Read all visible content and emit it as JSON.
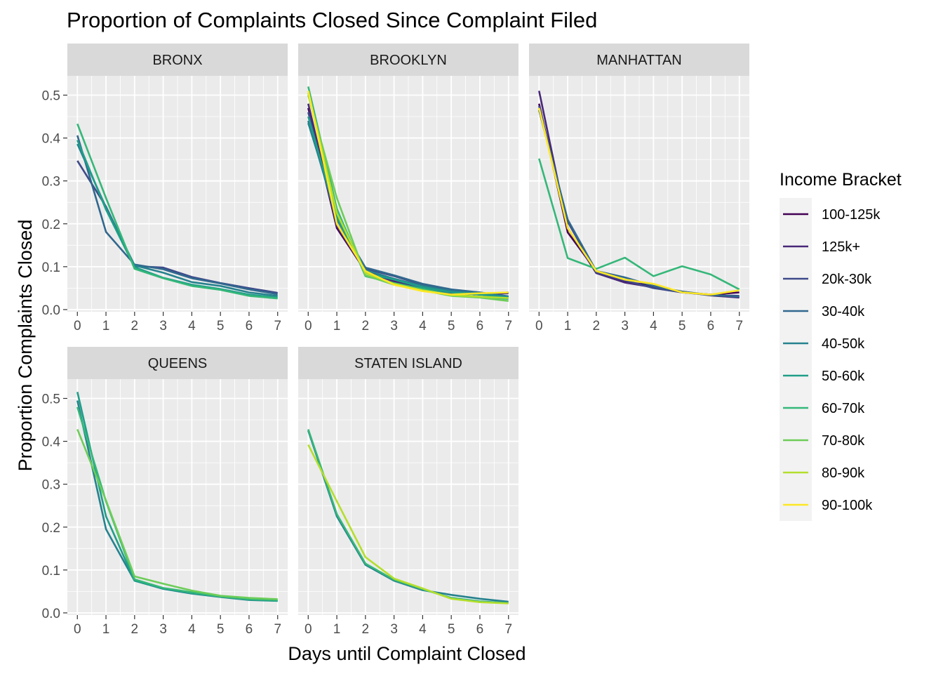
{
  "chart_data": {
    "type": "line",
    "title": "Proportion of Complaints Closed Since Complaint Filed",
    "xlabel": "Days until Complaint Closed",
    "ylabel": "Proportion Complaints Closed",
    "x": [
      0,
      1,
      2,
      3,
      4,
      5,
      6,
      7
    ],
    "x_ticks": [
      "0",
      "1",
      "2",
      "3",
      "4",
      "5",
      "6",
      "7"
    ],
    "y_ticks": [
      "0.0",
      "0.1",
      "0.2",
      "0.3",
      "0.4",
      "0.5"
    ],
    "xlim": [
      -0.35,
      7.35
    ],
    "ylim": [
      -0.005,
      0.545
    ],
    "grid": true,
    "legend": {
      "title": "Income Bracket",
      "position": "right",
      "entries": [
        {
          "name": "100-125k",
          "color": "#440154"
        },
        {
          "name": "125k+",
          "color": "#482878"
        },
        {
          "name": "20k-30k",
          "color": "#3E4A89"
        },
        {
          "name": "30-40k",
          "color": "#31688E"
        },
        {
          "name": "40-50k",
          "color": "#26828E"
        },
        {
          "name": "50-60k",
          "color": "#1F9E89"
        },
        {
          "name": "60-70k",
          "color": "#35B779"
        },
        {
          "name": "70-80k",
          "color": "#6DCD59"
        },
        {
          "name": "80-90k",
          "color": "#B4DE2C"
        },
        {
          "name": "90-100k",
          "color": "#FDE725"
        }
      ]
    },
    "panels": [
      {
        "name": "BRONX",
        "series": [
          {
            "name": "20k-30k",
            "color": "#3E4A89",
            "values": [
              0.347,
              0.24,
              0.101,
              0.098,
              0.076,
              0.062,
              0.05,
              0.039
            ]
          },
          {
            "name": "30-40k",
            "color": "#31688E",
            "values": [
              0.406,
              0.181,
              0.105,
              0.094,
              0.073,
              0.061,
              0.047,
              0.036
            ]
          },
          {
            "name": "40-50k",
            "color": "#26828E",
            "values": [
              0.386,
              0.238,
              0.103,
              0.086,
              0.064,
              0.055,
              0.04,
              0.032
            ]
          },
          {
            "name": "50-60k",
            "color": "#1F9E89",
            "values": [
              0.395,
              0.233,
              0.099,
              0.074,
              0.058,
              0.048,
              0.035,
              0.028
            ]
          },
          {
            "name": "60-70k",
            "color": "#35B779",
            "values": [
              0.433,
              0.26,
              0.095,
              0.073,
              0.055,
              0.046,
              0.032,
              0.026
            ]
          }
        ]
      },
      {
        "name": "BROOKLYN",
        "series": [
          {
            "name": "100-125k",
            "color": "#440154",
            "values": [
              0.47,
              0.19,
              0.09,
              0.068,
              0.05,
              0.04,
              0.035,
              0.04
            ]
          },
          {
            "name": "125k+",
            "color": "#482878",
            "values": [
              0.48,
              0.195,
              0.09,
              0.065,
              0.05,
              0.038,
              0.036,
              0.038
            ]
          },
          {
            "name": "20k-30k",
            "color": "#3E4A89",
            "values": [
              0.46,
              0.2,
              0.095,
              0.078,
              0.058,
              0.045,
              0.04,
              0.03
            ]
          },
          {
            "name": "30-40k",
            "color": "#31688E",
            "values": [
              0.44,
              0.21,
              0.098,
              0.08,
              0.06,
              0.047,
              0.04,
              0.031
            ]
          },
          {
            "name": "40-50k",
            "color": "#26828E",
            "values": [
              0.435,
              0.22,
              0.092,
              0.072,
              0.055,
              0.043,
              0.038,
              0.03
            ]
          },
          {
            "name": "50-60k",
            "color": "#1F9E89",
            "values": [
              0.45,
              0.215,
              0.085,
              0.07,
              0.052,
              0.04,
              0.035,
              0.028
            ]
          },
          {
            "name": "60-70k",
            "color": "#35B779",
            "values": [
              0.52,
              0.235,
              0.078,
              0.062,
              0.048,
              0.035,
              0.03,
              0.025
            ]
          },
          {
            "name": "70-80k",
            "color": "#6DCD59",
            "values": [
              0.5,
              0.26,
              0.08,
              0.058,
              0.045,
              0.032,
              0.028,
              0.02
            ]
          },
          {
            "name": "80-90k",
            "color": "#B4DE2C",
            "values": [
              0.505,
              0.225,
              0.085,
              0.06,
              0.045,
              0.034,
              0.03,
              0.027
            ]
          },
          {
            "name": "90-100k",
            "color": "#FDE725",
            "values": [
              0.51,
              0.2,
              0.09,
              0.058,
              0.043,
              0.035,
              0.038,
              0.04
            ]
          }
        ]
      },
      {
        "name": "MANHATTAN",
        "series": [
          {
            "name": "100-125k",
            "color": "#440154",
            "values": [
              0.48,
              0.18,
              0.09,
              0.065,
              0.055,
              0.04,
              0.035,
              0.04
            ]
          },
          {
            "name": "125k+",
            "color": "#482878",
            "values": [
              0.51,
              0.19,
              0.085,
              0.063,
              0.052,
              0.042,
              0.033,
              0.028
            ]
          },
          {
            "name": "20k-30k",
            "color": "#3E4A89",
            "values": [
              0.475,
              0.205,
              0.087,
              0.068,
              0.05,
              0.04,
              0.034,
              0.032
            ]
          },
          {
            "name": "30-40k",
            "color": "#31688E",
            "values": [
              0.465,
              0.21,
              0.09,
              0.075,
              0.055,
              0.042,
              0.034,
              0.03
            ]
          },
          {
            "name": "60-70k",
            "color": "#35B779",
            "values": [
              0.352,
              0.12,
              0.095,
              0.121,
              0.078,
              0.101,
              0.082,
              0.047
            ]
          },
          {
            "name": "90-100k",
            "color": "#FDE725",
            "values": [
              0.47,
              0.19,
              0.09,
              0.07,
              0.06,
              0.04,
              0.035,
              0.045
            ]
          }
        ]
      },
      {
        "name": "QUEENS",
        "series": [
          {
            "name": "40-50k",
            "color": "#26828E",
            "values": [
              0.495,
              0.195,
              0.075,
              0.056,
              0.045,
              0.037,
              0.03,
              0.028
            ]
          },
          {
            "name": "50-60k",
            "color": "#1F9E89",
            "values": [
              0.515,
              0.225,
              0.075,
              0.057,
              0.046,
              0.038,
              0.031,
              0.028
            ]
          },
          {
            "name": "60-70k",
            "color": "#35B779",
            "values": [
              0.48,
              0.26,
              0.078,
              0.058,
              0.048,
              0.038,
              0.032,
              0.03
            ]
          },
          {
            "name": "70-80k",
            "color": "#6DCD59",
            "values": [
              0.428,
              0.262,
              0.085,
              0.068,
              0.052,
              0.04,
              0.035,
              0.032
            ]
          }
        ]
      },
      {
        "name": "STATEN ISLAND",
        "series": [
          {
            "name": "40-50k",
            "color": "#26828E",
            "values": [
              0.425,
              0.225,
              0.112,
              0.075,
              0.053,
              0.042,
              0.033,
              0.026
            ]
          },
          {
            "name": "60-70k",
            "color": "#35B779",
            "values": [
              0.428,
              0.23,
              0.115,
              0.077,
              0.055,
              0.035,
              0.027,
              0.023
            ]
          },
          {
            "name": "80-90k",
            "color": "#B4DE2C",
            "values": [
              0.392,
              0.26,
              0.13,
              0.08,
              0.057,
              0.033,
              0.025,
              0.022
            ]
          }
        ]
      }
    ]
  }
}
